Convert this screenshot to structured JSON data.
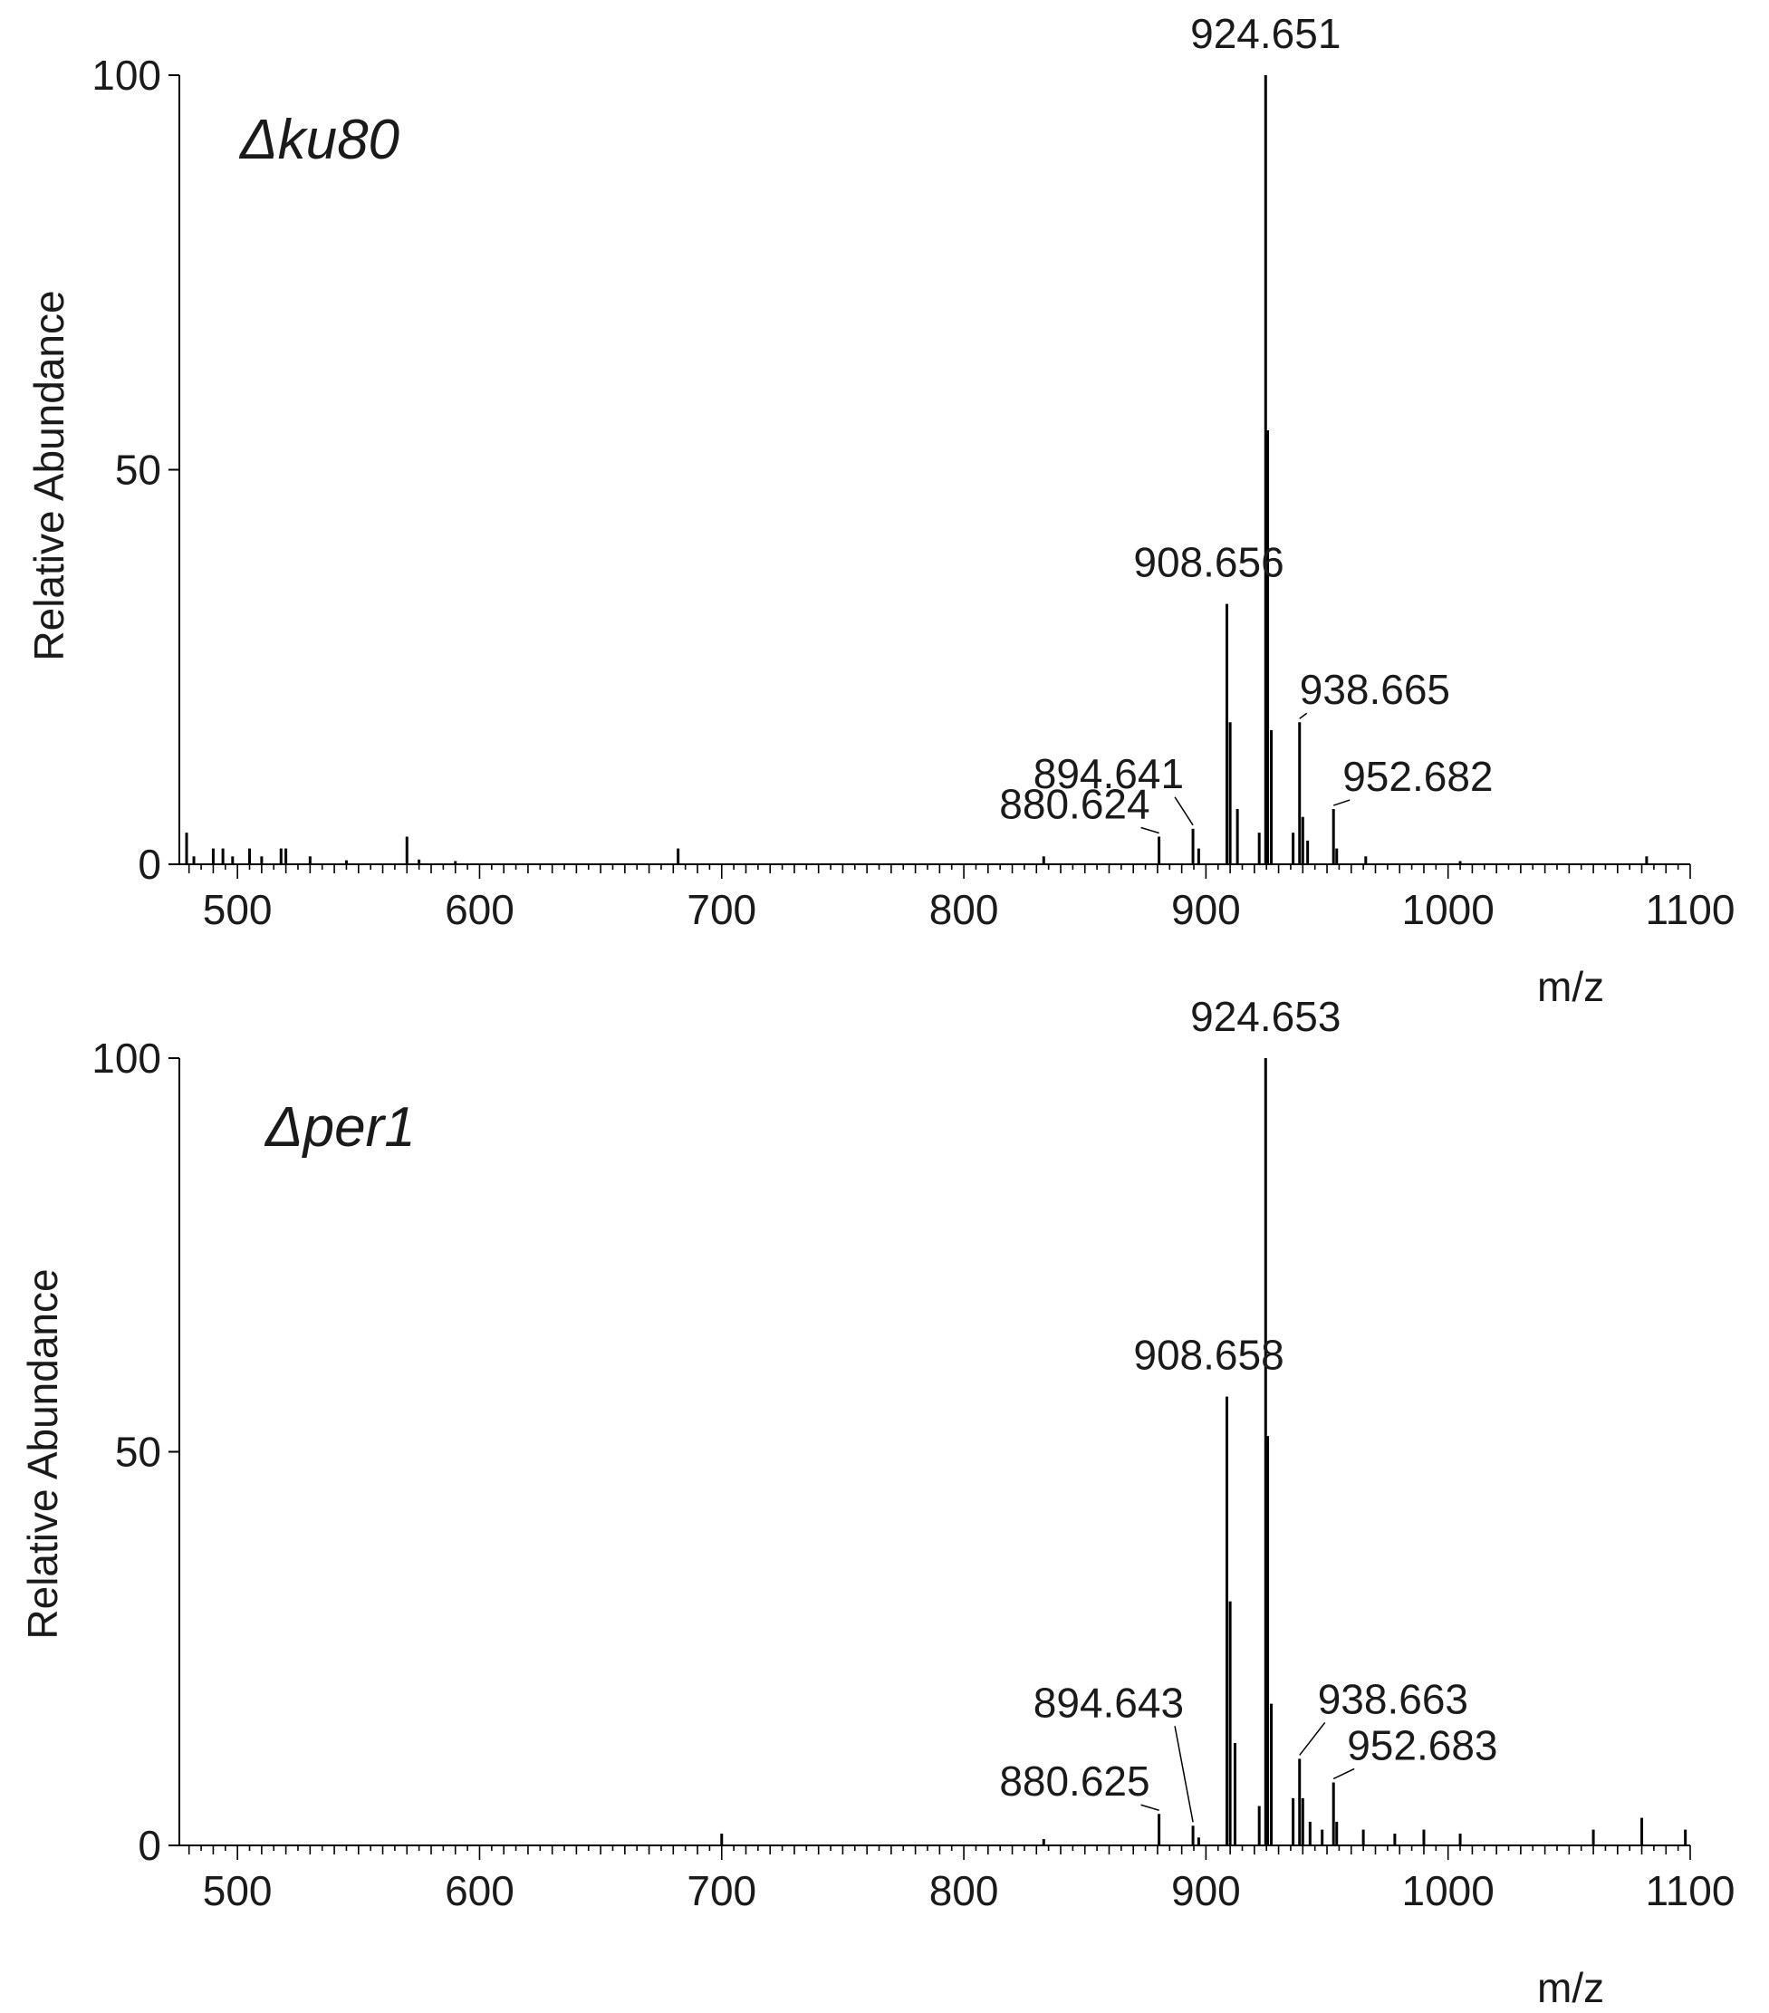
{
  "chart_data": [
    {
      "type": "bar",
      "panel_label": "Δku80",
      "xlabel": "m/z",
      "ylabel": "Relative Abundance",
      "xlim": [
        476,
        1100
      ],
      "ylim": [
        0,
        100
      ],
      "x_ticks": [
        "500",
        "600",
        "700",
        "800",
        "900",
        "1000",
        "1100"
      ],
      "y_ticks": [
        "0",
        "50",
        "100"
      ],
      "peaks": [
        {
          "x": 479,
          "y": 4
        },
        {
          "x": 482,
          "y": 1
        },
        {
          "x": 490,
          "y": 2
        },
        {
          "x": 494,
          "y": 2
        },
        {
          "x": 498,
          "y": 1
        },
        {
          "x": 505,
          "y": 2
        },
        {
          "x": 510,
          "y": 1
        },
        {
          "x": 518,
          "y": 2
        },
        {
          "x": 520,
          "y": 2
        },
        {
          "x": 530,
          "y": 1
        },
        {
          "x": 545,
          "y": 0.5
        },
        {
          "x": 570,
          "y": 3.5
        },
        {
          "x": 575,
          "y": 0.6
        },
        {
          "x": 590,
          "y": 0.4
        },
        {
          "x": 682,
          "y": 2
        },
        {
          "x": 833,
          "y": 1
        },
        {
          "x": 880.624,
          "y": 3.5
        },
        {
          "x": 894.641,
          "y": 4.5
        },
        {
          "x": 897,
          "y": 2
        },
        {
          "x": 908.656,
          "y": 33
        },
        {
          "x": 910,
          "y": 18
        },
        {
          "x": 913,
          "y": 7
        },
        {
          "x": 922,
          "y": 4
        },
        {
          "x": 924.651,
          "y": 100
        },
        {
          "x": 925.5,
          "y": 55
        },
        {
          "x": 927,
          "y": 17
        },
        {
          "x": 936,
          "y": 4
        },
        {
          "x": 938.665,
          "y": 18
        },
        {
          "x": 940,
          "y": 6
        },
        {
          "x": 942,
          "y": 3
        },
        {
          "x": 952.682,
          "y": 7
        },
        {
          "x": 954,
          "y": 2
        },
        {
          "x": 966,
          "y": 1
        },
        {
          "x": 1005,
          "y": 0.4
        },
        {
          "x": 1082,
          "y": 1
        }
      ],
      "annotations": [
        {
          "text": "924.651",
          "x": 924.651,
          "y": 100
        },
        {
          "text": "908.656",
          "x": 908.656,
          "y": 33
        },
        {
          "text": "894.641",
          "x": 894.641,
          "y": 4.5
        },
        {
          "text": "880.624",
          "x": 880.624,
          "y": 3.5
        },
        {
          "text": "938.665",
          "x": 938.665,
          "y": 18
        },
        {
          "text": "952.682",
          "x": 952.682,
          "y": 7
        }
      ]
    },
    {
      "type": "bar",
      "panel_label": "Δper1",
      "xlabel": "m/z",
      "ylabel": "Relative Abundance",
      "xlim": [
        476,
        1100
      ],
      "ylim": [
        0,
        100
      ],
      "x_ticks": [
        "500",
        "600",
        "700",
        "800",
        "900",
        "1000",
        "1100"
      ],
      "y_ticks": [
        "0",
        "50",
        "100"
      ],
      "peaks": [
        {
          "x": 700,
          "y": 1.5
        },
        {
          "x": 833,
          "y": 0.8
        },
        {
          "x": 880.625,
          "y": 4
        },
        {
          "x": 894.643,
          "y": 2.5
        },
        {
          "x": 897,
          "y": 1
        },
        {
          "x": 908.658,
          "y": 57
        },
        {
          "x": 910,
          "y": 31
        },
        {
          "x": 912,
          "y": 13
        },
        {
          "x": 922,
          "y": 5
        },
        {
          "x": 924.653,
          "y": 100
        },
        {
          "x": 925.5,
          "y": 52
        },
        {
          "x": 927,
          "y": 18
        },
        {
          "x": 936,
          "y": 6
        },
        {
          "x": 938.663,
          "y": 11
        },
        {
          "x": 940,
          "y": 6
        },
        {
          "x": 943,
          "y": 3
        },
        {
          "x": 948,
          "y": 2
        },
        {
          "x": 952.683,
          "y": 8
        },
        {
          "x": 954,
          "y": 3
        },
        {
          "x": 965,
          "y": 2
        },
        {
          "x": 978,
          "y": 1.5
        },
        {
          "x": 990,
          "y": 2
        },
        {
          "x": 1005,
          "y": 1.5
        },
        {
          "x": 1060,
          "y": 2
        },
        {
          "x": 1080,
          "y": 3.5
        },
        {
          "x": 1098,
          "y": 2
        }
      ],
      "annotations": [
        {
          "text": "924.653",
          "x": 924.653,
          "y": 100
        },
        {
          "text": "908.658",
          "x": 908.658,
          "y": 57
        },
        {
          "text": "894.643",
          "x": 894.643,
          "y": 2.5
        },
        {
          "text": "880.625",
          "x": 880.625,
          "y": 4
        },
        {
          "text": "938.663",
          "x": 938.663,
          "y": 11
        },
        {
          "text": "952.683",
          "x": 952.683,
          "y": 8
        }
      ]
    }
  ]
}
